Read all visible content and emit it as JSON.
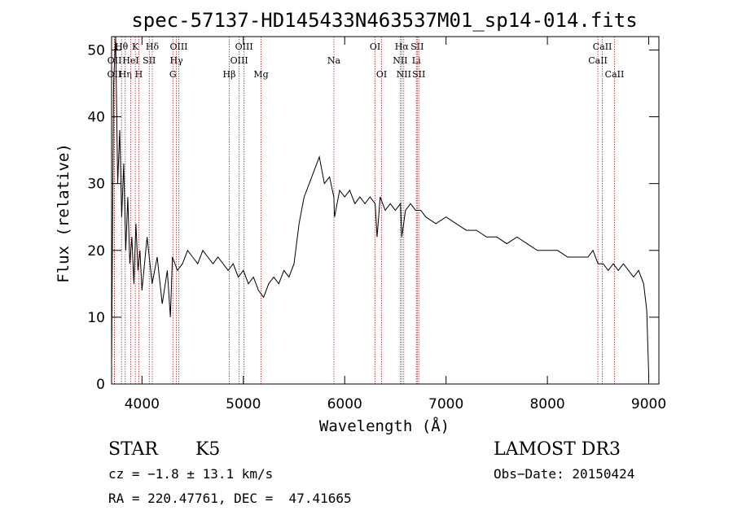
{
  "colors": {
    "line": "#000000",
    "marker": "#b22222",
    "background": "#ffffff"
  },
  "chart_data": {
    "type": "line",
    "title": "spec-57137-HD145433N463537M01_sp14-014.fits",
    "xlabel": "Wavelength (Å)",
    "ylabel": "Flux (relative)",
    "xlim": [
      3700,
      9100
    ],
    "ylim": [
      0,
      52
    ],
    "xticks": [
      4000,
      5000,
      6000,
      7000,
      8000,
      9000
    ],
    "yticks": [
      0,
      10,
      20,
      30,
      40,
      50
    ],
    "grid": false,
    "series": [
      {
        "x": [
          3700,
          3720,
          3740,
          3760,
          3780,
          3800,
          3820,
          3840,
          3860,
          3880,
          3900,
          3920,
          3940,
          3960,
          3980,
          4000,
          4050,
          4100,
          4150,
          4200,
          4250,
          4280,
          4300,
          4350,
          4400,
          4450,
          4500,
          4550,
          4600,
          4650,
          4700,
          4750,
          4800,
          4850,
          4900,
          4950,
          5000,
          5050,
          5100,
          5150,
          5200,
          5250,
          5300,
          5350,
          5400,
          5450,
          5500,
          5550,
          5600,
          5650,
          5700,
          5750,
          5800,
          5850,
          5893,
          5900,
          5950,
          6000,
          6050,
          6100,
          6150,
          6200,
          6250,
          6300,
          6320,
          6350,
          6400,
          6450,
          6500,
          6550,
          6563,
          6600,
          6650,
          6700,
          6750,
          6800,
          6900,
          7000,
          7100,
          7200,
          7300,
          7400,
          7500,
          7600,
          7700,
          7800,
          7900,
          8000,
          8100,
          8200,
          8300,
          8400,
          8450,
          8500,
          8550,
          8600,
          8650,
          8700,
          8750,
          8800,
          8850,
          8900,
          8950,
          8980,
          9000
        ],
        "values": [
          3,
          45,
          52,
          30,
          38,
          25,
          33,
          20,
          28,
          18,
          22,
          15,
          24,
          17,
          20,
          14,
          22,
          15,
          19,
          12,
          17,
          10,
          19,
          17,
          18,
          20,
          19,
          18,
          20,
          19,
          18,
          19,
          18,
          17,
          18,
          16,
          17,
          15,
          16,
          14,
          13,
          15,
          16,
          15,
          17,
          16,
          18,
          24,
          28,
          30,
          32,
          34,
          30,
          31,
          28,
          25,
          29,
          28,
          29,
          27,
          28,
          27,
          28,
          27,
          22,
          28,
          26,
          27,
          26,
          27,
          22,
          26,
          27,
          26,
          26,
          25,
          24,
          25,
          24,
          23,
          23,
          22,
          22,
          21,
          22,
          21,
          20,
          20,
          20,
          19,
          19,
          19,
          20,
          18,
          18,
          17,
          18,
          17,
          18,
          17,
          16,
          17,
          15,
          11,
          1
        ]
      }
    ],
    "annotations": [
      {
        "label": "OII",
        "x": 3727,
        "row": 3
      },
      {
        "label": "OII",
        "x": 3729,
        "row": 2
      },
      {
        "label": "Hθ",
        "x": 3798,
        "row": 1
      },
      {
        "label": "Hη",
        "x": 3835,
        "row": 3
      },
      {
        "label": "HeI",
        "x": 3889,
        "row": 2
      },
      {
        "label": "K",
        "x": 3934,
        "row": 1
      },
      {
        "label": "H",
        "x": 3969,
        "row": 3
      },
      {
        "label": "SII",
        "x": 4072,
        "row": 2
      },
      {
        "label": "Hδ",
        "x": 4102,
        "row": 1
      },
      {
        "label": "G",
        "x": 4305,
        "row": 3
      },
      {
        "label": "Hγ",
        "x": 4340,
        "row": 2
      },
      {
        "label": "OIII",
        "x": 4363,
        "row": 1
      },
      {
        "label": "Hβ",
        "x": 4861,
        "row": 3
      },
      {
        "label": "OIII",
        "x": 4959,
        "row": 2
      },
      {
        "label": "OIII",
        "x": 5007,
        "row": 1
      },
      {
        "label": "Mg",
        "x": 5175,
        "row": 3
      },
      {
        "label": "Na",
        "x": 5894,
        "row": 2
      },
      {
        "label": "OI",
        "x": 6300,
        "row": 1
      },
      {
        "label": "OI",
        "x": 6364,
        "row": 3
      },
      {
        "label": "NII",
        "x": 6548,
        "row": 2
      },
      {
        "label": "Hα",
        "x": 6563,
        "row": 1
      },
      {
        "label": "NII",
        "x": 6583,
        "row": 3
      },
      {
        "label": "Li",
        "x": 6707,
        "row": 2
      },
      {
        "label": "SII",
        "x": 6716,
        "row": 1
      },
      {
        "label": "SII",
        "x": 6731,
        "row": 3
      },
      {
        "label": "CaII",
        "x": 8498,
        "row": 2
      },
      {
        "label": "CaII",
        "x": 8542,
        "row": 1
      },
      {
        "label": "CaII",
        "x": 8662,
        "row": 3
      }
    ]
  },
  "info": {
    "object_class": "STAR",
    "subclass": "K5",
    "survey": "LAMOST DR3",
    "redshift": "cz = −1.8 ± 13.1 km/s",
    "obs_date": "Obs−Date: 20150424",
    "coords": "RA = 220.47761, DEC =  47.41665"
  }
}
